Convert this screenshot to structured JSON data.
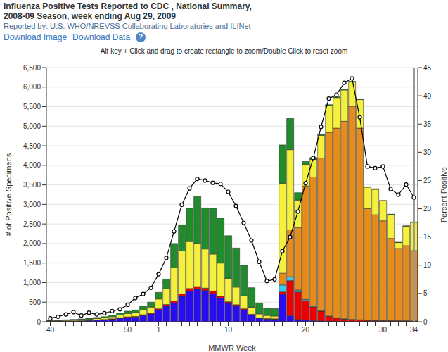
{
  "chart_data": {
    "type": "bar",
    "stacked": true,
    "grid": true,
    "title": "Influenza Positive Tests Reported to CDC , National Summary,",
    "subtitle": "2008-09 Season, week ending Aug 29, 2009",
    "annotations": {
      "source": "Reported by: U.S. WHO/NREVSS Collaborating Laboratories and ILINet",
      "links": [
        "Download Image",
        "Download Data"
      ],
      "help": "?",
      "instructions": "Alt key + Click and drag to create rectangle to zoom/Double Click to reset zoom"
    },
    "x_label": "MMWR Week",
    "y_label": "# of Positive Specimens",
    "y2_label": "Percent Positive",
    "categories": [
      "40",
      null,
      null,
      null,
      null,
      null,
      null,
      null,
      null,
      null,
      "50",
      null,
      null,
      null,
      "1",
      null,
      null,
      null,
      null,
      null,
      null,
      null,
      null,
      "10",
      null,
      null,
      null,
      null,
      null,
      null,
      null,
      null,
      null,
      "20",
      null,
      null,
      null,
      null,
      null,
      null,
      null,
      null,
      null,
      "30",
      null,
      null,
      null,
      "34"
    ],
    "ylim": [
      0,
      6500
    ],
    "yticks": [
      0,
      500,
      {
        "value": 1000,
        "label": "1,000"
      },
      {
        "value": 1500,
        "label": "1,500"
      },
      {
        "value": 2000,
        "label": "2,000"
      },
      {
        "value": 2500,
        "label": "2,500"
      },
      {
        "value": 3000,
        "label": "3,000"
      },
      {
        "value": 3500,
        "label": "3,500"
      },
      {
        "value": 4000,
        "label": "4,000"
      },
      {
        "value": 4500,
        "label": "4,500"
      },
      {
        "value": 5000,
        "label": "5,000"
      },
      {
        "value": 5500,
        "label": "5,500"
      },
      {
        "value": 6000,
        "label": "6,000"
      },
      {
        "value": 6500,
        "label": "6,500"
      }
    ],
    "y2lim": [
      0,
      45
    ],
    "y2ticks": [
      0,
      5,
      10,
      15,
      20,
      25,
      30,
      35,
      40,
      45
    ],
    "series": [
      {
        "color": "#2a0cf0",
        "values": [
          10,
          12,
          15,
          18,
          20,
          30,
          40,
          50,
          65,
          90,
          110,
          120,
          160,
          200,
          300,
          400,
          480,
          650,
          780,
          830,
          800,
          720,
          600,
          470,
          400,
          300,
          170,
          90,
          70,
          60,
          700,
          150,
          60,
          40,
          30,
          20,
          15,
          10,
          10,
          5,
          5,
          5,
          5,
          5,
          5,
          5,
          5,
          5
        ]
      },
      {
        "color": "#ee0000",
        "values": [
          2,
          3,
          3,
          4,
          5,
          5,
          6,
          8,
          10,
          12,
          15,
          15,
          20,
          25,
          30,
          40,
          50,
          60,
          70,
          70,
          60,
          60,
          50,
          40,
          35,
          30,
          20,
          10,
          10,
          10,
          60,
          900,
          700,
          500,
          350,
          250,
          120,
          80,
          60,
          50,
          40,
          30,
          25,
          20,
          20,
          15,
          15,
          10
        ]
      },
      {
        "color": "#3cc8f0",
        "values": [
          0,
          0,
          0,
          0,
          0,
          0,
          0,
          0,
          0,
          0,
          0,
          0,
          0,
          0,
          0,
          0,
          0,
          0,
          0,
          0,
          0,
          0,
          0,
          0,
          0,
          0,
          0,
          0,
          0,
          5,
          180,
          100,
          50,
          30,
          20,
          15,
          10,
          10,
          5,
          5,
          5,
          5,
          5,
          5,
          5,
          5,
          5,
          5
        ]
      },
      {
        "color": "#e48c1e",
        "values": [
          0,
          0,
          0,
          0,
          0,
          0,
          0,
          0,
          0,
          0,
          0,
          0,
          0,
          0,
          0,
          0,
          0,
          0,
          0,
          0,
          0,
          0,
          0,
          0,
          0,
          0,
          0,
          0,
          0,
          0,
          300,
          1200,
          1600,
          2900,
          3300,
          3900,
          4700,
          4850,
          5050,
          5450,
          4900,
          2850,
          2700,
          2550,
          2100,
          1850,
          1920,
          1800
        ]
      },
      {
        "color": "#f5f03c",
        "values": [
          10,
          15,
          18,
          22,
          25,
          30,
          35,
          40,
          55,
          70,
          85,
          95,
          120,
          150,
          250,
          400,
          850,
          1100,
          1200,
          1100,
          1000,
          950,
          850,
          600,
          450,
          330,
          180,
          100,
          80,
          70,
          2300,
          2050,
          700,
          550,
          450,
          580,
          680,
          780,
          800,
          620,
          730,
          550,
          650,
          510,
          610,
          150,
          500,
          720
        ]
      },
      {
        "color": "#218c2b",
        "values": [
          8,
          10,
          14,
          16,
          20,
          25,
          29,
          32,
          40,
          48,
          60,
          70,
          100,
          125,
          170,
          250,
          620,
          660,
          850,
          1200,
          1050,
          1170,
          1150,
          1090,
          1000,
          780,
          500,
          280,
          190,
          190,
          980,
          800,
          190,
          80,
          50,
          35,
          25,
          20,
          25,
          20,
          20,
          10,
          15,
          10,
          10,
          10,
          5,
          10
        ]
      },
      {
        "type": "line",
        "axis": "y2",
        "color": "#000000",
        "marker": "circle",
        "values": [
          0.6,
          0.9,
          1.3,
          1.7,
          1.1,
          1.6,
          1.3,
          1.5,
          1.9,
          2.2,
          3.0,
          4.2,
          4.9,
          6.0,
          8.4,
          11.3,
          16.0,
          20.7,
          23.6,
          25.3,
          25.0,
          24.6,
          24.4,
          23.0,
          20.5,
          17.5,
          14.4,
          10.6,
          7.2,
          7.5,
          12.5,
          15.0,
          19.5,
          24.5,
          29.0,
          34.5,
          39.5,
          40.2,
          42.3,
          43.1,
          36.2,
          27.5,
          27.2,
          27.5,
          23.5,
          22.5,
          24.3,
          22.0
        ]
      }
    ]
  }
}
